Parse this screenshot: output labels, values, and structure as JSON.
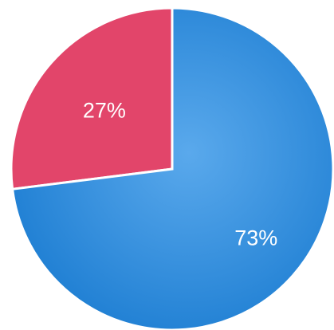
{
  "chart_data": {
    "type": "pie",
    "title": "",
    "slices": [
      {
        "label": "27%",
        "value": 27,
        "color": "#e2456a"
      },
      {
        "label": "73%",
        "value": 73,
        "color": "#2f8ad8"
      }
    ],
    "legend": "none"
  }
}
